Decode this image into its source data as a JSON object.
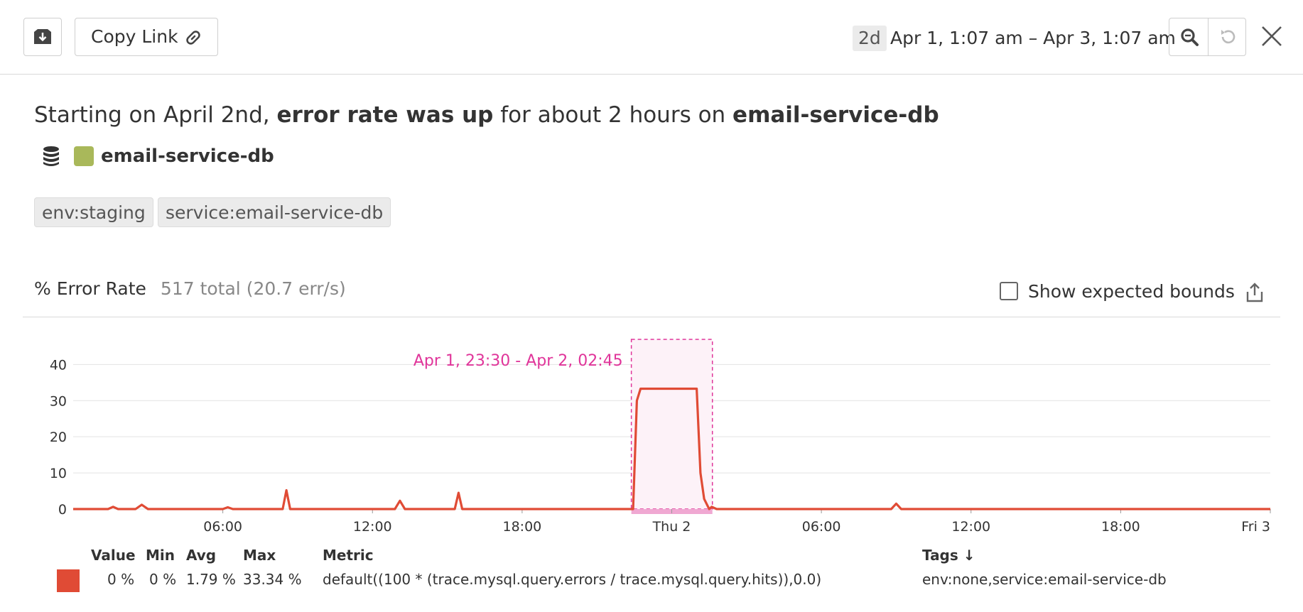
{
  "toolbar": {
    "save_icon": "download-box-icon",
    "copy_link_label": "Copy Link",
    "link_icon": "link-icon",
    "range_badge": "2d",
    "range_text": "Apr 1, 1:07 am – Apr 3, 1:07 am",
    "zoom_icon": "search-icon",
    "reset_icon": "undo-icon",
    "close_icon": "close-icon"
  },
  "summary": {
    "prefix": "Starting on April 2nd, ",
    "metric_phrase": "error rate was up",
    "middle": " for about 2 hours on ",
    "service": "email-service-db"
  },
  "service": {
    "icon": "database-icon",
    "swatch_color": "#a9b85a",
    "name": "email-service-db"
  },
  "tags": [
    "env:staging",
    "service:email-service-db"
  ],
  "chart_header": {
    "title": "% Error Rate",
    "total": "517 total (20.7 err/s)",
    "show_bounds_label": "Show expected bounds",
    "show_bounds_checked": false,
    "export_icon": "share-export-icon"
  },
  "chart_data": {
    "type": "line",
    "x_tick_labels": [
      "06:00",
      "12:00",
      "18:00",
      "Thu 2",
      "06:00",
      "12:00",
      "18:00",
      "Fri 3"
    ],
    "x_range_hours": [
      0,
      48
    ],
    "ylim": [
      0,
      44
    ],
    "y_ticks": [
      0,
      10,
      20,
      30,
      40
    ],
    "grid": true,
    "series": [
      {
        "color": "#e04b35",
        "points": [
          [
            0,
            0
          ],
          [
            1.4,
            0
          ],
          [
            1.6,
            0.6
          ],
          [
            1.8,
            0
          ],
          [
            2.5,
            0
          ],
          [
            2.75,
            1.2
          ],
          [
            3,
            0
          ],
          [
            6,
            0
          ],
          [
            6.2,
            0.5
          ],
          [
            6.4,
            0
          ],
          [
            8.4,
            0
          ],
          [
            8.55,
            5.2
          ],
          [
            8.7,
            0
          ],
          [
            12.9,
            0
          ],
          [
            13.1,
            2.3
          ],
          [
            13.3,
            0
          ],
          [
            15.3,
            0
          ],
          [
            15.45,
            4.5
          ],
          [
            15.6,
            0
          ],
          [
            22.45,
            0
          ],
          [
            22.6,
            30
          ],
          [
            22.75,
            33.3
          ],
          [
            25,
            33.3
          ],
          [
            25.15,
            10
          ],
          [
            25.3,
            2.8
          ],
          [
            25.5,
            0
          ],
          [
            25.6,
            0.6
          ],
          [
            25.8,
            0
          ],
          [
            32.8,
            0
          ],
          [
            33,
            1.5
          ],
          [
            33.2,
            0
          ],
          [
            48,
            0
          ]
        ]
      }
    ],
    "annotation": {
      "label": "Apr 1, 23:30 - Apr 2, 02:45",
      "x_start_hours": 22.38,
      "x_end_hours": 25.63,
      "color": "#e0359a"
    }
  },
  "legend": {
    "headers": {
      "value": "Value",
      "min": "Min",
      "avg": "Avg",
      "max": "Max",
      "metric": "Metric",
      "tags": "Tags ↓"
    },
    "rows": [
      {
        "color": "#e04b35",
        "value": "0 %",
        "min": "0 %",
        "avg": "1.79 %",
        "max": "33.34 %",
        "metric": "default((100 * (trace.mysql.query.errors / trace.mysql.query.hits)),0.0)",
        "tags": "env:none,service:email-service-db"
      }
    ]
  }
}
